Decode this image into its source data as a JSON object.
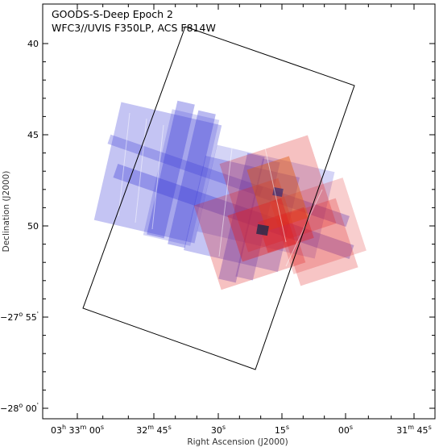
{
  "chart_data": {
    "type": "scatter",
    "title_lines": [
      "GOODS-S-Deep Epoch 2",
      "WFC3//UVIS F350LP, ACS F814W"
    ],
    "xlabel": "Right Ascension (J2000)",
    "ylabel": "Declination (J2000)",
    "x_ticks": [
      {
        "value": "03h 33m 00s",
        "main": "03",
        "sup": "h",
        "main2": " 33",
        "sup2": "m",
        "main3": " 00",
        "sup3": "s"
      },
      {
        "value": "32m 45s",
        "main": "32",
        "sup": "m",
        "main2": " 45",
        "sup2": "s"
      },
      {
        "value": "30s",
        "main": "30",
        "sup": "s"
      },
      {
        "value": "15s",
        "main": "15",
        "sup": "s"
      },
      {
        "value": "00s",
        "main": "00",
        "sup": "s"
      },
      {
        "value": "31m 45s",
        "main": "31",
        "sup": "m",
        "main2": " 45",
        "sup2": "s"
      }
    ],
    "y_ticks": [
      {
        "value": "40",
        "main": "40"
      },
      {
        "value": "45",
        "main": "45"
      },
      {
        "value": "50",
        "main": "50"
      },
      {
        "value": "-27o 55'",
        "main": "−27",
        "sup": "o",
        "main2": " 55",
        "sup2": "'"
      },
      {
        "value": "-28o 00'",
        "main": "−28",
        "sup": "o",
        "main2": " 00",
        "sup2": "'"
      }
    ],
    "series": [
      {
        "name": "WFC3//UVIS F350LP",
        "color": "#3a3ad8"
      },
      {
        "name": "ACS F814W",
        "color": "#e02020"
      }
    ],
    "grid": false
  }
}
